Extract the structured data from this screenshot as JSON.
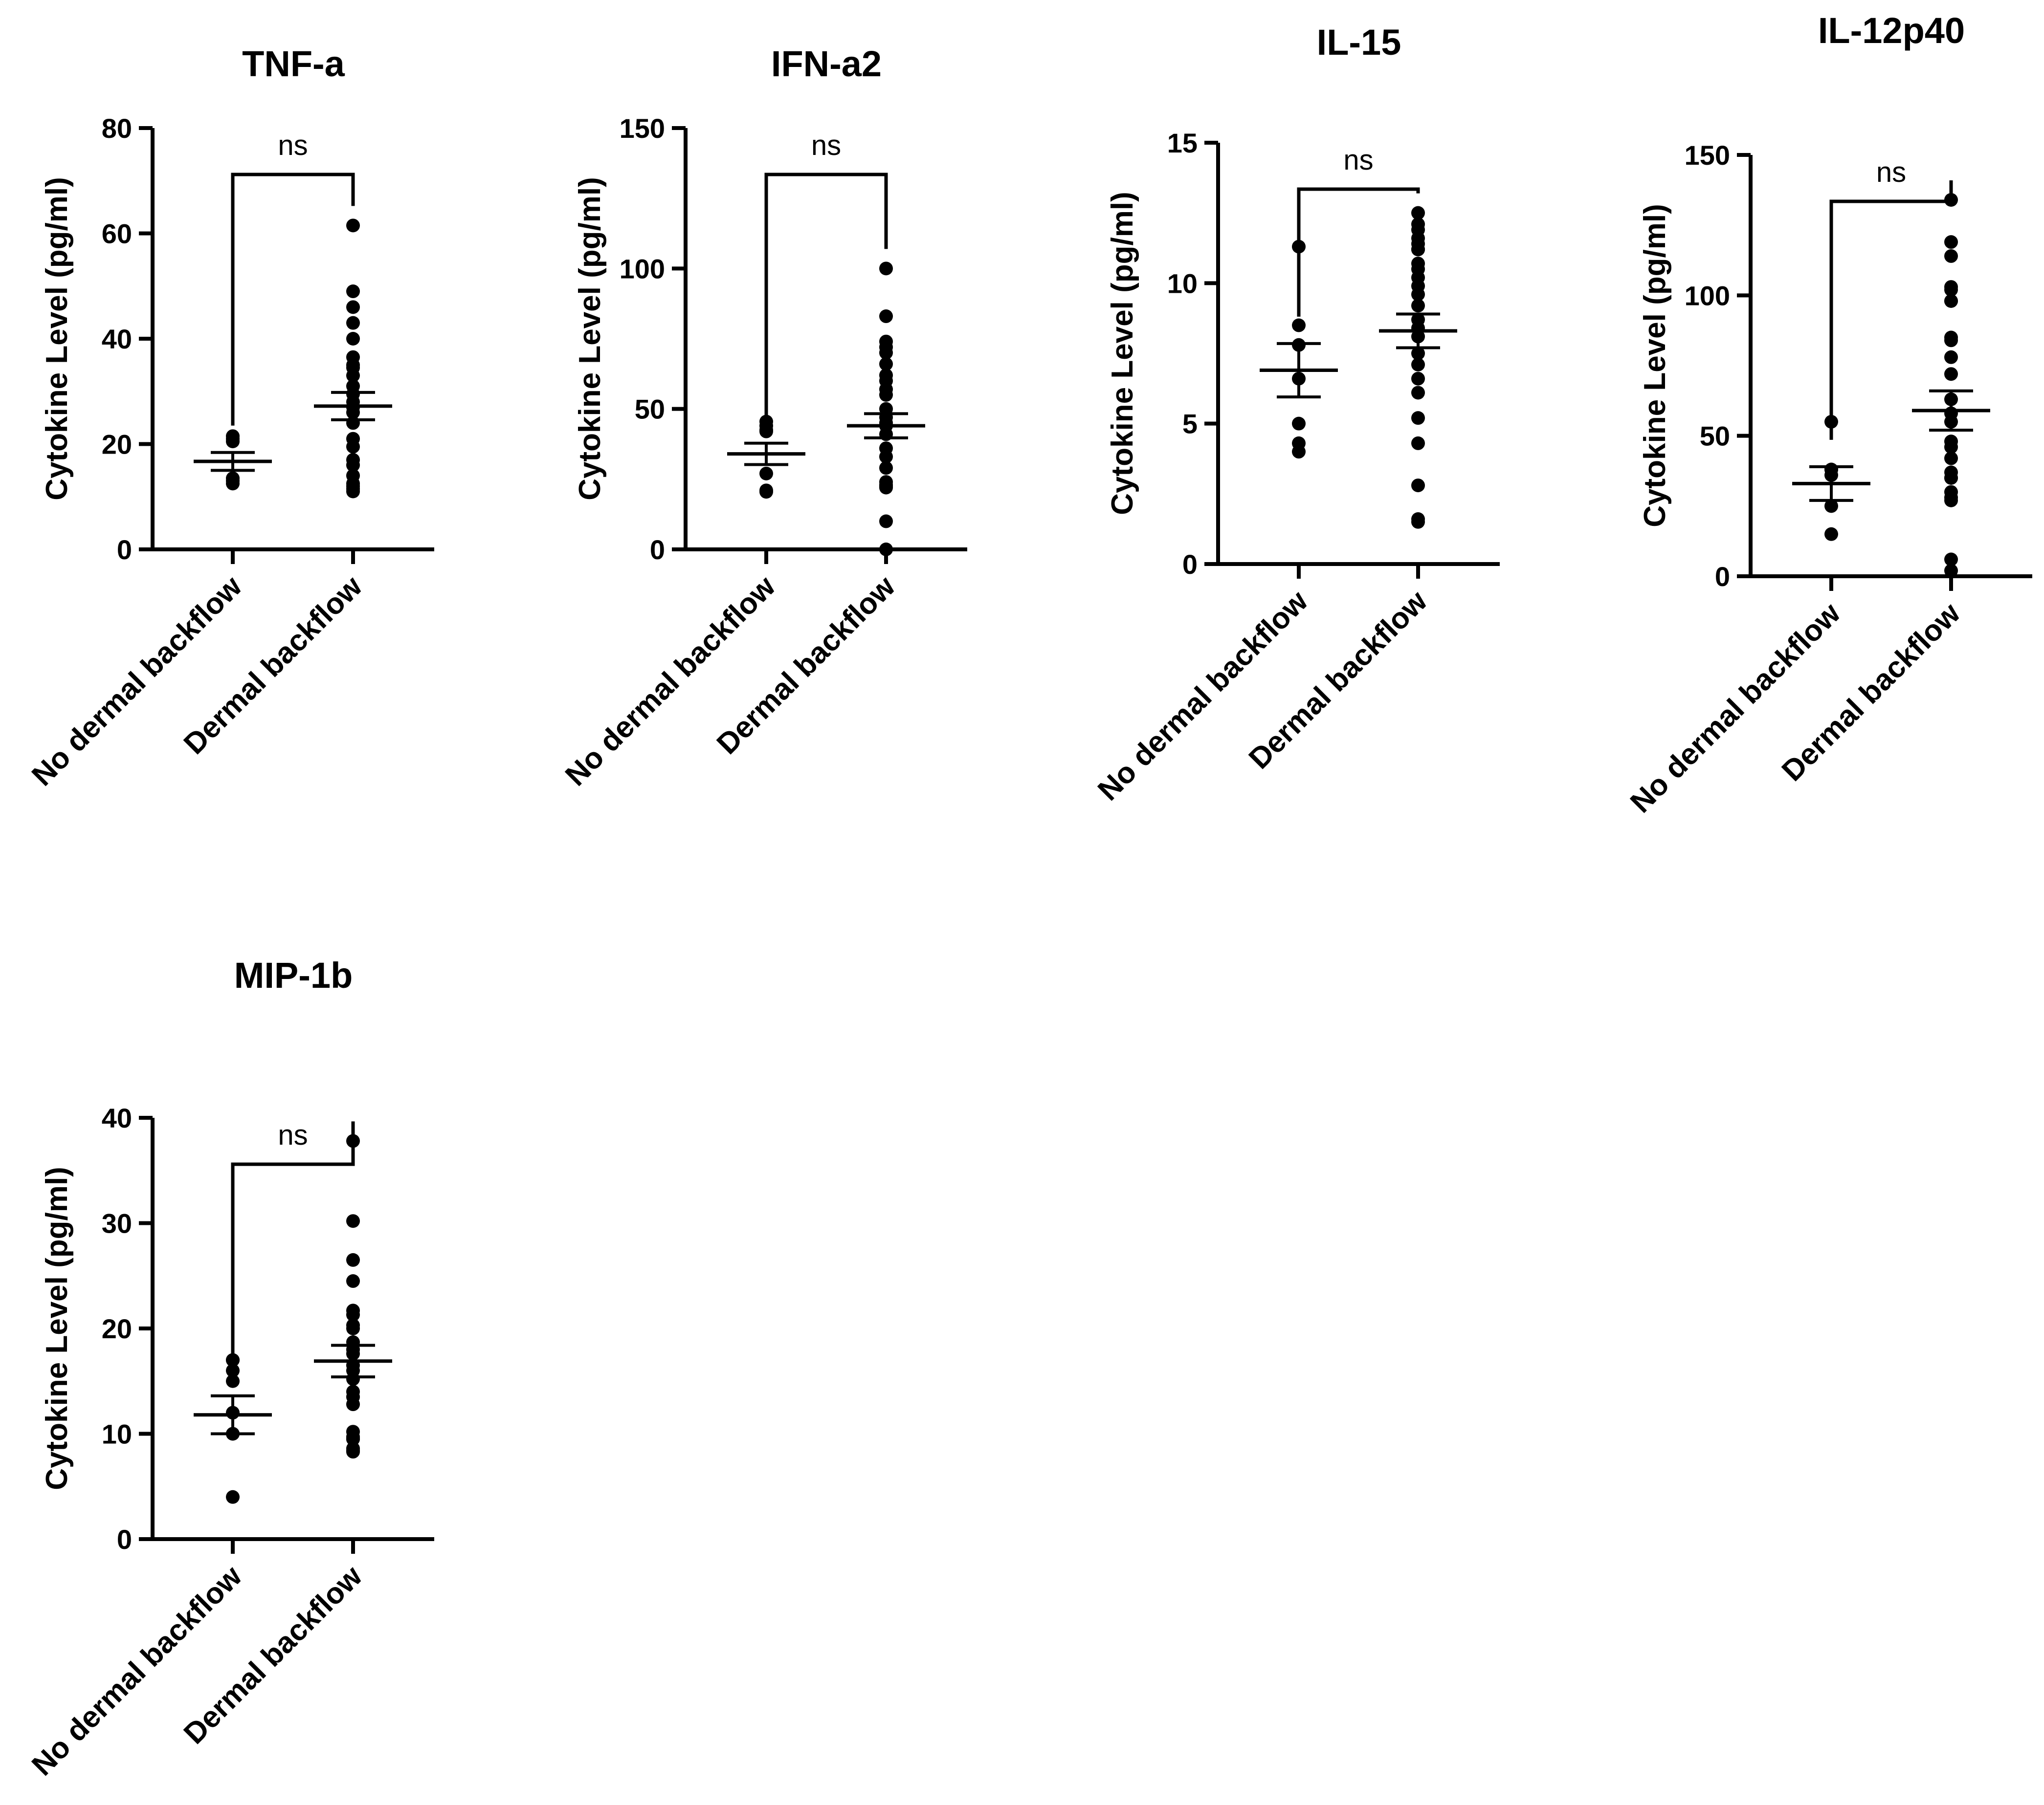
{
  "chart_data": [
    {
      "type": "scatter",
      "title": "TNF-a",
      "ylabel": "Cytokine Level (pg/ml)",
      "categories": [
        "No dermal backflow",
        "Dermal backflow"
      ],
      "ylim": [
        0,
        80
      ],
      "yticks": [
        0,
        20,
        40,
        60,
        80
      ],
      "significance": "ns",
      "groups": [
        {
          "name": "No dermal backflow",
          "mean": 16.7,
          "sem": 1.7,
          "values": [
            21.5,
            20.5,
            21.0,
            13.0,
            12.5,
            13.5
          ]
        },
        {
          "name": "Dermal backflow",
          "mean": 27.2,
          "sem": 2.6,
          "values": [
            61.5,
            49.0,
            46.0,
            43.0,
            40.0,
            36.5,
            35.0,
            34.5,
            33.0,
            31.0,
            29.5,
            28.0,
            27.0,
            26.0,
            24.0,
            21.0,
            19.5,
            17.0,
            16.0,
            14.0,
            12.0,
            11.5,
            11.0,
            12.5
          ]
        }
      ]
    },
    {
      "type": "scatter",
      "title": "IFN-a2",
      "ylabel": "Cytokine Level (pg/ml)",
      "categories": [
        "No dermal backflow",
        "Dermal backflow"
      ],
      "ylim": [
        0,
        150
      ],
      "yticks": [
        0,
        50,
        100,
        150
      ],
      "significance": "ns",
      "groups": [
        {
          "name": "No dermal backflow",
          "mean": 34.0,
          "sem": 3.8,
          "values": [
            45.5,
            44.0,
            42.0,
            42.5,
            27.0,
            21.0,
            20.5
          ]
        },
        {
          "name": "Dermal backflow",
          "mean": 44.0,
          "sem": 4.3,
          "values": [
            100.0,
            83.0,
            74.0,
            72.0,
            70.0,
            66.0,
            62.0,
            60.0,
            57.0,
            55.0,
            50.0,
            47.0,
            45.0,
            44.0,
            41.0,
            36.0,
            33.0,
            29.0,
            24.0,
            23.0,
            22.0,
            22.5,
            10.0,
            0.0
          ]
        }
      ]
    },
    {
      "type": "scatter",
      "title": "IL-15",
      "ylabel": "Cytokine Level (pg/ml)",
      "categories": [
        "No dermal backflow",
        "Dermal backflow"
      ],
      "ylim": [
        0,
        15
      ],
      "yticks": [
        0,
        5,
        10,
        15
      ],
      "significance": "ns",
      "groups": [
        {
          "name": "No dermal backflow",
          "mean": 6.9,
          "sem": 0.95,
          "values": [
            11.3,
            8.5,
            7.8,
            6.6,
            5.0,
            4.3,
            4.0
          ]
        },
        {
          "name": "Dermal backflow",
          "mean": 8.3,
          "sem": 0.6,
          "values": [
            12.5,
            12.1,
            11.9,
            11.6,
            11.4,
            11.2,
            11.2,
            10.7,
            10.5,
            10.2,
            9.9,
            9.6,
            9.2,
            8.7,
            8.4,
            8.1,
            7.5,
            7.1,
            6.6,
            6.1,
            5.2,
            4.3,
            2.8,
            1.6,
            1.5
          ]
        }
      ]
    },
    {
      "type": "scatter",
      "title": "IL-12p40",
      "ylabel": "Cytokine Level (pg/ml)",
      "categories": [
        "No dermal backflow",
        "Dermal backflow"
      ],
      "ylim": [
        0,
        150
      ],
      "yticks": [
        0,
        50,
        100,
        150
      ],
      "significance": "ns",
      "groups": [
        {
          "name": "No dermal backflow",
          "mean": 33.0,
          "sem": 6.0,
          "values": [
            55.0,
            38.0,
            38.0,
            36.0,
            25.0,
            15.0
          ]
        },
        {
          "name": "Dermal backflow",
          "mean": 59.0,
          "sem": 7.0,
          "values": [
            134.0,
            119.0,
            114.0,
            103.0,
            102.0,
            98.0,
            98.0,
            85.0,
            84.0,
            78.0,
            72.0,
            63.0,
            58.0,
            55.0,
            48.0,
            46.0,
            42.0,
            37.0,
            35.0,
            35.0,
            30.0,
            28.0,
            27.0,
            6.0,
            2.0
          ]
        }
      ]
    },
    {
      "type": "scatter",
      "title": "MIP-1b",
      "ylabel": "Cytokine Level (pg/ml)",
      "categories": [
        "No dermal backflow",
        "Dermal backflow"
      ],
      "ylim": [
        0,
        40
      ],
      "yticks": [
        0,
        10,
        20,
        30,
        40
      ],
      "significance": "ns",
      "groups": [
        {
          "name": "No dermal backflow",
          "mean": 11.8,
          "sem": 1.8,
          "values": [
            17.0,
            17.0,
            16.0,
            15.0,
            12.0,
            10.0,
            10.0,
            4.0
          ]
        },
        {
          "name": "Dermal backflow",
          "mean": 16.9,
          "sem": 1.5,
          "values": [
            37.8,
            30.2,
            26.5,
            24.5,
            21.7,
            21.3,
            20.3,
            20.0,
            18.7,
            18.0,
            17.6,
            16.5,
            16.0,
            15.2,
            14.0,
            13.5,
            12.8,
            10.2,
            9.7,
            9.5,
            9.5,
            8.6,
            8.4,
            8.3
          ]
        }
      ]
    }
  ]
}
